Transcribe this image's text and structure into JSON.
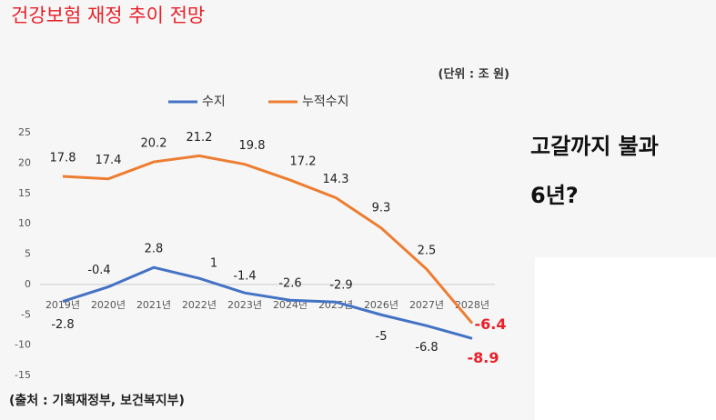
{
  "chart_data": {
    "type": "line",
    "title": "건강보험 재정 추이 전망",
    "unit": "(단위 : 조 원)",
    "source": "(출처 : 기획재정부, 보건복지부)",
    "annotations": [
      "고갈까지 불과",
      "6년?"
    ],
    "categories": [
      "2019년",
      "2020년",
      "2021년",
      "2022년",
      "2023년",
      "2024년",
      "2025년",
      "2026년",
      "2027년",
      "2028년"
    ],
    "series": [
      {
        "name": "수지",
        "color": "#4472c4",
        "values": [
          -2.8,
          -0.4,
          2.8,
          1,
          -1.4,
          -2.6,
          -2.9,
          -5,
          -6.8,
          -8.9
        ]
      },
      {
        "name": "누적수지",
        "color": "#ed7d31",
        "values": [
          17.8,
          17.4,
          20.2,
          21.2,
          19.8,
          17.2,
          14.3,
          9.3,
          2.5,
          -6.4
        ]
      }
    ],
    "highlight_color": "#e8202a",
    "ylim": [
      -15,
      25
    ],
    "yticks": [
      -15,
      -10,
      -5,
      0,
      5,
      10,
      15,
      20,
      25
    ]
  }
}
